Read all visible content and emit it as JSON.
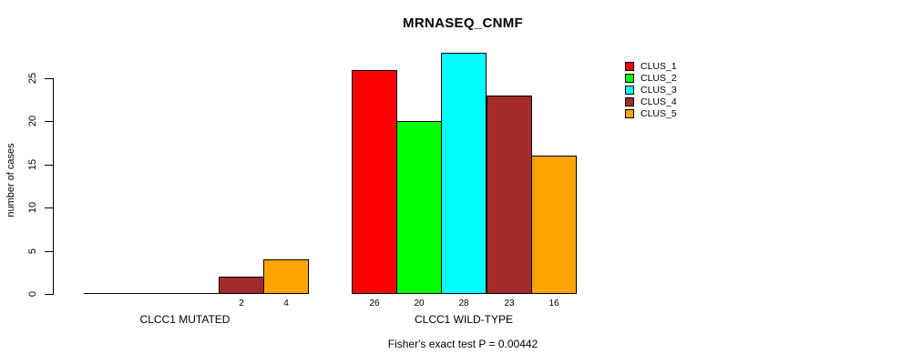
{
  "chart_data": {
    "type": "bar",
    "title": "MRNASEQ_CNMF",
    "ylabel": "number of cases",
    "xlabel": "",
    "ylim": [
      0,
      28
    ],
    "yticks": [
      0,
      5,
      10,
      15,
      20,
      25
    ],
    "grid": false,
    "legend_position": "top-right",
    "categories": [
      "CLCC1 MUTATED",
      "CLCC1 WILD-TYPE"
    ],
    "series": [
      {
        "name": "CLUS_1",
        "color": "#FF0000",
        "values": [
          0,
          26
        ]
      },
      {
        "name": "CLUS_2",
        "color": "#00FF00",
        "values": [
          0,
          20
        ]
      },
      {
        "name": "CLUS_3",
        "color": "#00FFFF",
        "values": [
          0,
          28
        ]
      },
      {
        "name": "CLUS_4",
        "color": "#A52A2A",
        "values": [
          2,
          23
        ]
      },
      {
        "name": "CLUS_5",
        "color": "#FFA500",
        "values": [
          4,
          16
        ]
      }
    ],
    "value_labels_under_bars": [
      [
        "",
        "",
        "",
        "2",
        "4"
      ],
      [
        "26",
        "20",
        "28",
        "23",
        "16"
      ]
    ],
    "caption": "Fisher's exact test P = 0.00442",
    "axis_color": "#000000",
    "background_color": "#FFFFFF"
  }
}
